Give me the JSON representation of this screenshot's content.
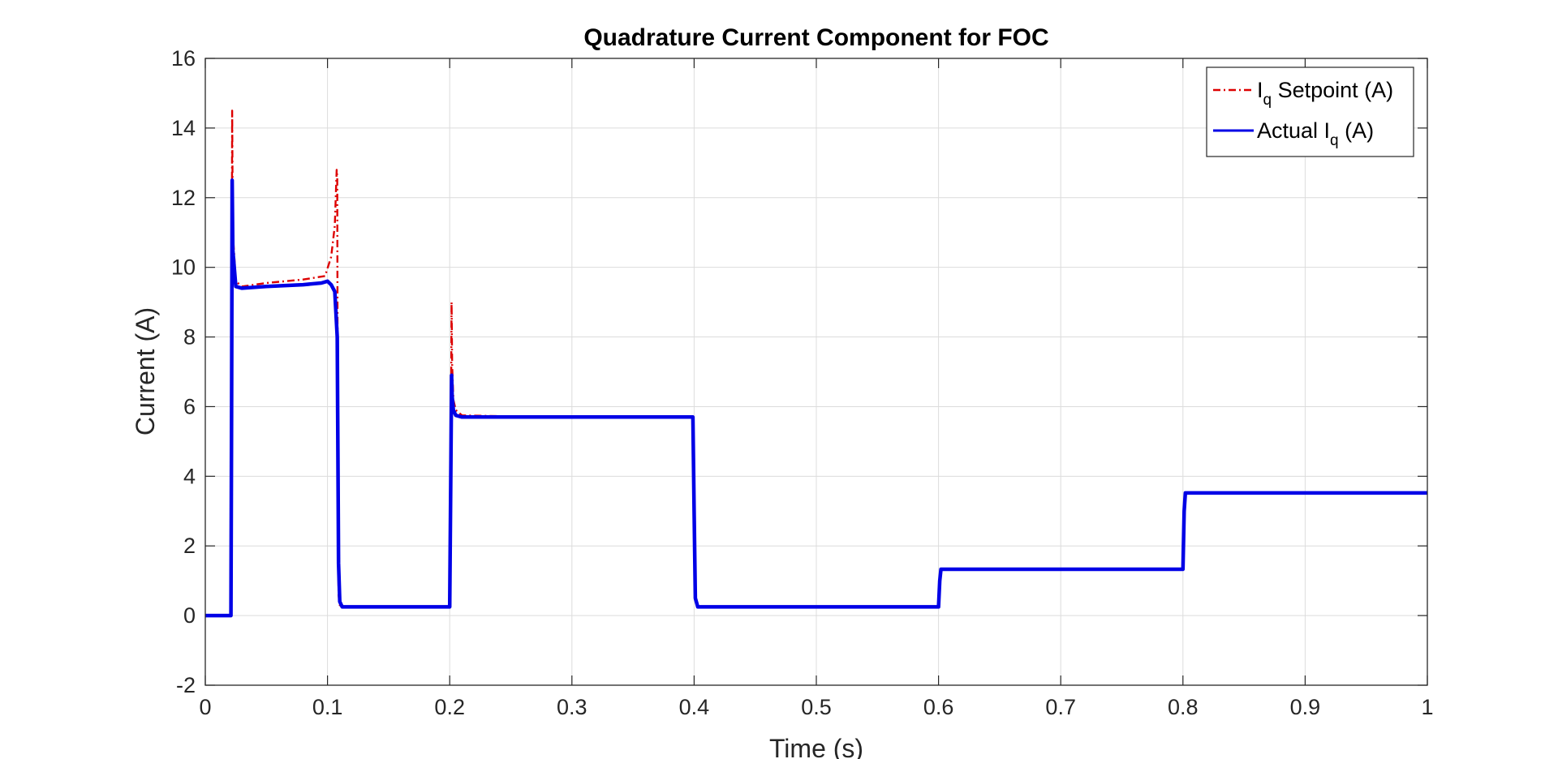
{
  "chart_data": {
    "type": "line",
    "title": "Quadrature Current Component for FOC",
    "xlabel": "Time (s)",
    "ylabel": "Current (A)",
    "xlim": [
      0,
      1
    ],
    "ylim": [
      -2,
      16
    ],
    "xticks": [
      0,
      0.1,
      0.2,
      0.3,
      0.4,
      0.5,
      0.6,
      0.7,
      0.8,
      0.9,
      1
    ],
    "xtick_labels": [
      "0",
      "0.1",
      "0.2",
      "0.3",
      "0.4",
      "0.5",
      "0.6",
      "0.7",
      "0.8",
      "0.9",
      "1"
    ],
    "yticks": [
      -2,
      0,
      2,
      4,
      6,
      8,
      10,
      12,
      14,
      16
    ],
    "ytick_labels": [
      "-2",
      "0",
      "2",
      "4",
      "6",
      "8",
      "10",
      "12",
      "14",
      "16"
    ],
    "grid": true,
    "legend_position": "top-right",
    "series": [
      {
        "name_parts": [
          "I",
          "q",
          " Setpoint (A)"
        ],
        "color": "#dd0000",
        "style": "dash-dot",
        "x": [
          0,
          0.021,
          0.0215,
          0.022,
          0.0225,
          0.025,
          0.03,
          0.05,
          0.08,
          0.098,
          0.103,
          0.106,
          0.1075,
          0.108,
          0.1085,
          0.109,
          0.11,
          0.112,
          0.15,
          0.2,
          0.201,
          0.2015,
          0.202,
          0.203,
          0.205,
          0.21,
          0.25,
          0.3,
          0.35,
          0.399,
          0.4,
          0.401,
          0.403,
          0.45,
          0.5,
          0.55,
          0.6,
          0.601,
          0.602,
          0.65,
          0.7,
          0.75,
          0.8,
          0.801,
          0.802,
          0.85,
          0.9,
          0.95,
          1
        ],
        "y": [
          0,
          0,
          6.5,
          14.5,
          11.0,
          9.6,
          9.45,
          9.55,
          9.65,
          9.75,
          10.3,
          11.2,
          12.8,
          12.6,
          3.0,
          0.6,
          0.3,
          0.25,
          0.25,
          0.25,
          5.0,
          9.0,
          7.2,
          6.2,
          5.9,
          5.75,
          5.72,
          5.72,
          5.72,
          5.72,
          3.0,
          0.5,
          0.25,
          0.25,
          0.25,
          0.25,
          0.25,
          1.0,
          1.33,
          1.33,
          1.33,
          1.33,
          1.33,
          3.0,
          3.52,
          3.52,
          3.52,
          3.52,
          3.52
        ]
      },
      {
        "name_parts": [
          "Actual I",
          "q",
          " (A)"
        ],
        "color": "#0000e6",
        "style": "solid",
        "x": [
          0,
          0.021,
          0.0215,
          0.022,
          0.0225,
          0.025,
          0.03,
          0.05,
          0.08,
          0.095,
          0.1,
          0.103,
          0.106,
          0.108,
          0.109,
          0.11,
          0.112,
          0.15,
          0.2,
          0.201,
          0.2015,
          0.202,
          0.203,
          0.205,
          0.21,
          0.25,
          0.3,
          0.35,
          0.399,
          0.4,
          0.401,
          0.403,
          0.45,
          0.5,
          0.55,
          0.6,
          0.601,
          0.602,
          0.65,
          0.7,
          0.75,
          0.8,
          0.801,
          0.802,
          0.85,
          0.9,
          0.95,
          1
        ],
        "y": [
          0,
          0,
          6.0,
          12.5,
          10.5,
          9.45,
          9.4,
          9.45,
          9.5,
          9.55,
          9.6,
          9.5,
          9.3,
          8.0,
          1.5,
          0.4,
          0.25,
          0.25,
          0.25,
          4.5,
          6.9,
          6.3,
          5.9,
          5.75,
          5.7,
          5.7,
          5.7,
          5.7,
          5.7,
          3.0,
          0.5,
          0.25,
          0.25,
          0.25,
          0.25,
          0.25,
          1.0,
          1.33,
          1.33,
          1.33,
          1.33,
          1.33,
          3.0,
          3.52,
          3.52,
          3.52,
          3.52,
          3.52
        ]
      }
    ]
  }
}
